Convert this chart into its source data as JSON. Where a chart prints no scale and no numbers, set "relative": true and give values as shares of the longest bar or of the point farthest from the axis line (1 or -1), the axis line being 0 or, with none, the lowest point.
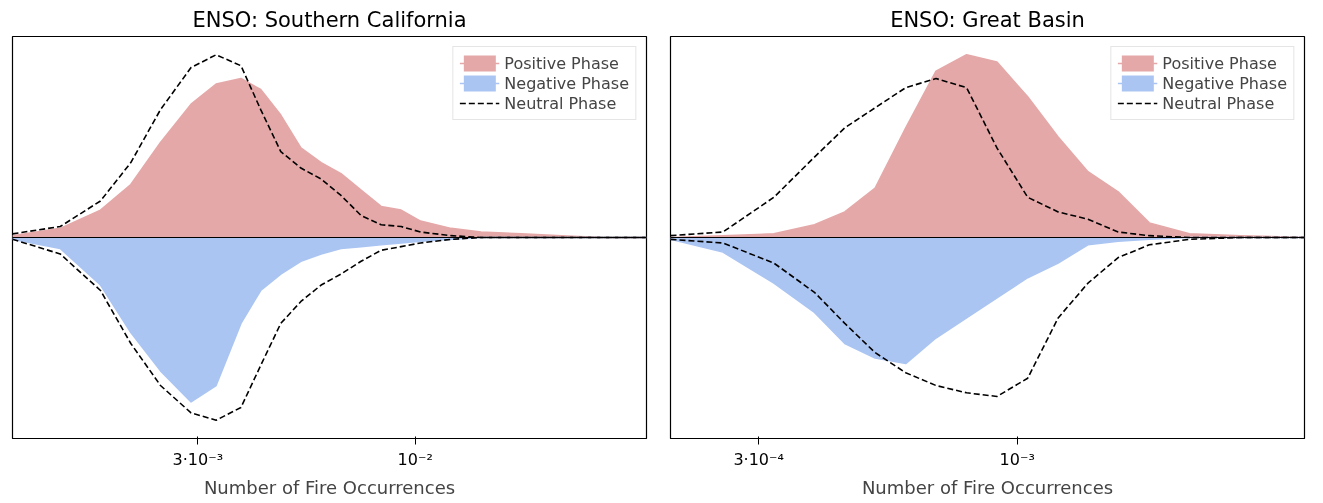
{
  "chart_data": [
    {
      "type": "area",
      "title": "ENSO: Southern California",
      "xlabel": "Number of Fire Occurrences",
      "relative": true,
      "log": "x",
      "legend": "top right",
      "grid": false,
      "xlim": [
        0.001075,
        0.036
      ],
      "xticks": [
        {
          "value": 0.003,
          "label": "3·10⁻³"
        },
        {
          "value": 0.01,
          "label": "10⁻²"
        }
      ],
      "x": [
        0.001075,
        0.0014,
        0.00175,
        0.00207,
        0.00244,
        0.00289,
        0.00332,
        0.00381,
        0.00425,
        0.00475,
        0.00531,
        0.00594,
        0.00663,
        0.00741,
        0.00828,
        0.00925,
        0.0103,
        0.0122,
        0.0144,
        0.018,
        0.0225,
        0.0281,
        0.036
      ],
      "series": [
        {
          "name": "Positive Phase",
          "color": "#e5a8a8",
          "values": [
            0.01,
            0.05,
            0.15,
            0.29,
            0.52,
            0.73,
            0.84,
            0.87,
            0.81,
            0.67,
            0.49,
            0.41,
            0.35,
            0.26,
            0.17,
            0.15,
            0.09,
            0.05,
            0.03,
            0.02,
            0.01,
            0,
            0
          ]
        },
        {
          "name": "Negative Phase",
          "color": "#abc5f2",
          "values": [
            -0.01,
            -0.06,
            -0.26,
            -0.52,
            -0.73,
            -0.9,
            -0.81,
            -0.47,
            -0.29,
            -0.2,
            -0.13,
            -0.09,
            -0.06,
            -0.05,
            -0.04,
            -0.03,
            -0.02,
            -0.01,
            0,
            0,
            0,
            0,
            0
          ]
        },
        {
          "name": "Neutral Phase",
          "type": "line",
          "line_style": "dashed",
          "color": "#000000",
          "values": [
            0.02,
            0.06,
            0.2,
            0.41,
            0.7,
            0.93,
            1.0,
            0.94,
            0.7,
            0.47,
            0.38,
            0.32,
            0.23,
            0.12,
            0.07,
            0.06,
            0.03,
            0.01,
            0,
            0,
            0,
            0,
            0
          ]
        },
        {
          "type": "line",
          "line_style": "dashed",
          "color": "#000000",
          "values": [
            -0.01,
            -0.09,
            -0.29,
            -0.58,
            -0.81,
            -0.96,
            -1.0,
            -0.93,
            -0.7,
            -0.47,
            -0.35,
            -0.26,
            -0.2,
            -0.13,
            -0.07,
            -0.05,
            -0.03,
            -0.01,
            0,
            0,
            0,
            0,
            0
          ]
        }
      ]
    },
    {
      "type": "area",
      "title": "ENSO: Great Basin",
      "xlabel": "Number of Fire Occurrences",
      "relative": true,
      "log": "x",
      "legend": "top right",
      "grid": false,
      "xlim": [
        0.000199,
        0.00381
      ],
      "xticks": [
        {
          "value": 0.0003,
          "label": "3·10⁻⁴"
        },
        {
          "value": 0.001,
          "label": "10⁻³"
        }
      ],
      "x": [
        0.000199,
        0.000254,
        0.000322,
        0.000389,
        0.000448,
        0.000516,
        0.000595,
        0.000685,
        0.00079,
        0.00091,
        0.00105,
        0.00121,
        0.00139,
        0.0016,
        0.00185,
        0.00223,
        0.00283,
        0.00381
      ],
      "series": [
        {
          "name": "Positive Phase",
          "color": "#e5a8a8",
          "values": [
            0,
            0.01,
            0.02,
            0.07,
            0.14,
            0.27,
            0.6,
            0.91,
            1.0,
            0.96,
            0.77,
            0.55,
            0.36,
            0.25,
            0.08,
            0.02,
            0.01,
            0
          ]
        },
        {
          "name": "Negative Phase",
          "color": "#abc5f2",
          "values": [
            -0.01,
            -0.08,
            -0.25,
            -0.41,
            -0.58,
            -0.66,
            -0.69,
            -0.55,
            -0.44,
            -0.33,
            -0.22,
            -0.14,
            -0.04,
            -0.02,
            -0.01,
            0,
            0,
            0
          ]
        },
        {
          "name": "Neutral Phase",
          "type": "line",
          "line_style": "dashed",
          "color": "#000000",
          "values": [
            0.01,
            0.03,
            0.22,
            0.44,
            0.6,
            0.71,
            0.82,
            0.87,
            0.82,
            0.49,
            0.22,
            0.14,
            0.1,
            0.03,
            0.01,
            0,
            0,
            0
          ]
        },
        {
          "type": "line",
          "line_style": "dashed",
          "color": "#000000",
          "values": [
            -0.01,
            -0.03,
            -0.14,
            -0.3,
            -0.47,
            -0.63,
            -0.74,
            -0.81,
            -0.85,
            -0.87,
            -0.77,
            -0.44,
            -0.25,
            -0.11,
            -0.04,
            -0.01,
            0,
            0
          ]
        }
      ]
    }
  ]
}
